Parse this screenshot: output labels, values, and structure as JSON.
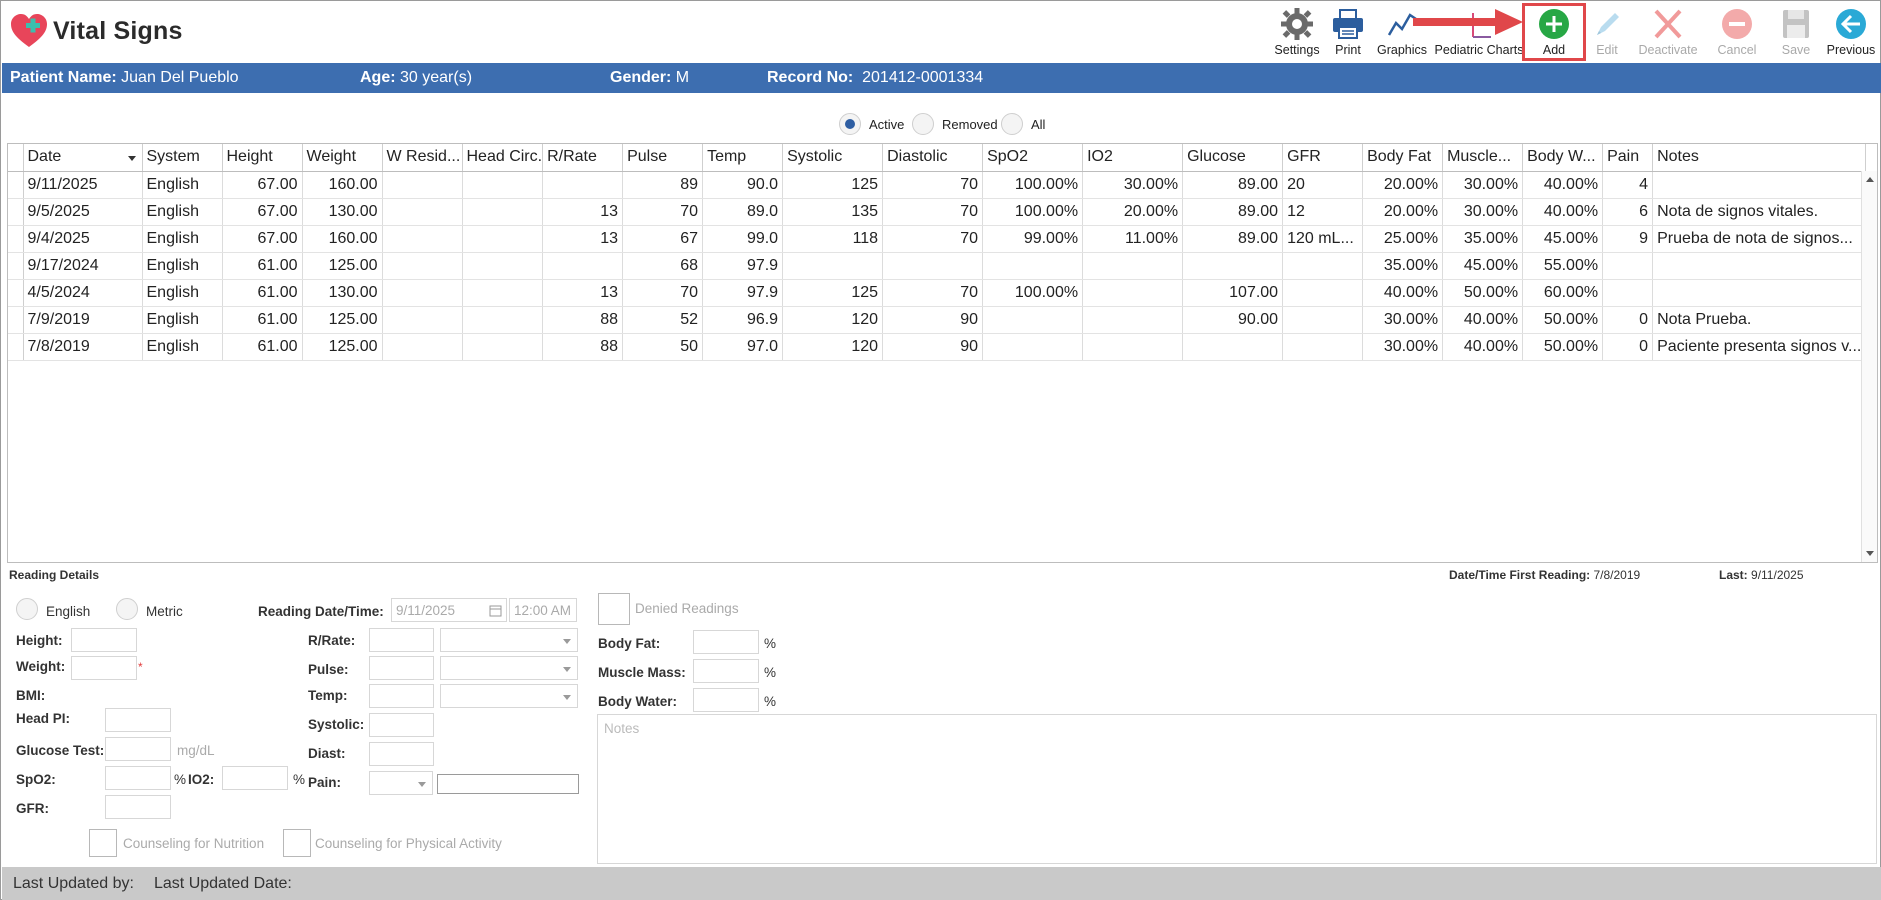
{
  "app": {
    "title": "Vital Signs"
  },
  "toolbar": {
    "settings": "Settings",
    "print": "Print",
    "graphics": "Graphics",
    "pediatric": "Pediatric Charts",
    "add": "Add",
    "edit": "Edit",
    "deactivate": "Deactivate",
    "cancel": "Cancel",
    "save": "Save",
    "previous": "Previous"
  },
  "patient": {
    "name_label": "Patient Name:",
    "name": "Juan Del Pueblo",
    "age_label": "Age:",
    "age": "30 year(s)",
    "gender_label": "Gender:",
    "gender": "M",
    "record_label": "Record No:",
    "record": "201412-0001334"
  },
  "filters": {
    "active": "Active",
    "removed": "Removed",
    "all": "All",
    "selected": "Active"
  },
  "grid": {
    "columns": [
      "Date",
      "System",
      "Height",
      "Weight",
      "W Resid...",
      "Head Circ.",
      "R/Rate",
      "Pulse",
      "Temp",
      "Systolic",
      "Diastolic",
      "SpO2",
      "IO2",
      "Glucose",
      "GFR",
      "Body Fat",
      "Muscle...",
      "Body W...",
      "Pain",
      "Notes"
    ],
    "rows": [
      [
        "9/11/2025",
        "English",
        "67.00",
        "160.00",
        "",
        "",
        "",
        "89",
        "90.0",
        "125",
        "70",
        "100.00%",
        "30.00%",
        "89.00",
        "20",
        "20.00%",
        "30.00%",
        "40.00%",
        "4",
        ""
      ],
      [
        "9/5/2025",
        "English",
        "67.00",
        "130.00",
        "",
        "",
        "13",
        "70",
        "89.0",
        "135",
        "70",
        "100.00%",
        "20.00%",
        "89.00",
        "12",
        "20.00%",
        "30.00%",
        "40.00%",
        "6",
        "Nota de signos vitales."
      ],
      [
        "9/4/2025",
        "English",
        "67.00",
        "160.00",
        "",
        "",
        "13",
        "67",
        "99.0",
        "118",
        "70",
        "99.00%",
        "11.00%",
        "89.00",
        "120 mL...",
        "25.00%",
        "35.00%",
        "45.00%",
        "9",
        "Prueba de nota de signos..."
      ],
      [
        "9/17/2024",
        "English",
        "61.00",
        "125.00",
        "",
        "",
        "",
        "68",
        "97.9",
        "",
        "",
        "",
        "",
        "",
        "",
        "35.00%",
        "45.00%",
        "55.00%",
        "",
        ""
      ],
      [
        "4/5/2024",
        "English",
        "61.00",
        "130.00",
        "",
        "",
        "13",
        "70",
        "97.9",
        "125",
        "70",
        "100.00%",
        "",
        "107.00",
        "",
        "40.00%",
        "50.00%",
        "60.00%",
        "",
        ""
      ],
      [
        "7/9/2019",
        "English",
        "61.00",
        "125.00",
        "",
        "",
        "88",
        "52",
        "96.9",
        "120",
        "90",
        "",
        "",
        "90.00",
        "",
        "30.00%",
        "40.00%",
        "50.00%",
        "0",
        "Nota Prueba."
      ],
      [
        "7/8/2019",
        "English",
        "61.00",
        "125.00",
        "",
        "",
        "88",
        "50",
        "97.0",
        "120",
        "90",
        "",
        "",
        "",
        "",
        "30.00%",
        "40.00%",
        "50.00%",
        "0",
        "Paciente presenta signos v..."
      ]
    ]
  },
  "details": {
    "title": "Reading Details",
    "first_label": "Date/Time First Reading:",
    "first_value": "7/8/2019",
    "last_label": "Last:",
    "last_value": "9/11/2025",
    "english": "English",
    "metric": "Metric",
    "reading_dt_label": "Reading Date/Time:",
    "reading_date": "9/11/2025",
    "reading_time": "12:00 AM",
    "height": "Height:",
    "weight": "Weight:",
    "req_mark": "*",
    "bmi": "BMI:",
    "head_pi": "Head PI:",
    "glucose_test": "Glucose Test:",
    "glucose_unit": "mg/dL",
    "spo2": "SpO2:",
    "pct": "%",
    "io2": "IO2:",
    "gfr": "GFR:",
    "rrate": "R/Rate:",
    "pulse": "Pulse:",
    "temp": "Temp:",
    "systolic": "Systolic:",
    "diast": "Diast:",
    "pain": "Pain:",
    "denied": "Denied Readings",
    "body_fat": "Body Fat:",
    "muscle_mass": "Muscle Mass:",
    "body_water": "Body Water:",
    "notes_placeholder": "Notes",
    "counsel_nutrition": "Counseling for Nutrition",
    "counsel_activity": "Counseling for Physical Activity"
  },
  "footer": {
    "updated_by": "Last Updated by:",
    "updated_date": "Last Updated Date:"
  },
  "colors": {
    "patient_bar": "#3d6eb0",
    "add_green": "#27a745",
    "highlight_red": "#e0474a",
    "previous_teal": "#2aa9d6"
  }
}
